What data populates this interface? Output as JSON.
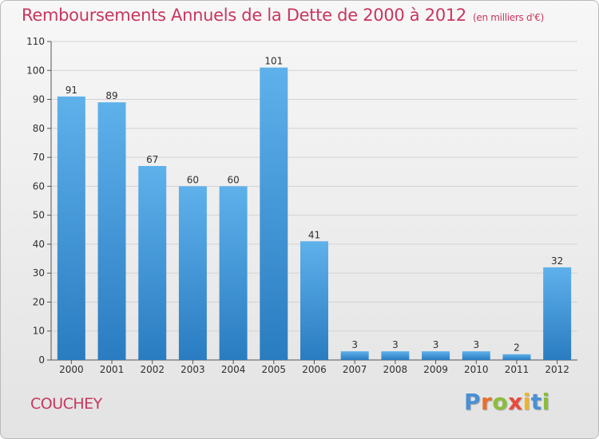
{
  "title": "Remboursements Annuels de la Dette de 2000 à 2012",
  "title_unit": "(en milliers d'€)",
  "commune": "COUCHEY",
  "brand": "Proxiti",
  "colors": {
    "title": "#c8365e",
    "bar_top": "#5eb1eb",
    "bar_bottom": "#2a7cc1",
    "brand_letters": [
      "#4a8fd4",
      "#e8702a",
      "#8bbd3c",
      "#e84a3c",
      "#f0b32a",
      "#4a8fd4",
      "#8bbd3c"
    ]
  },
  "chart_data": {
    "type": "bar",
    "categories": [
      "2000",
      "2001",
      "2002",
      "2003",
      "2004",
      "2005",
      "2006",
      "2007",
      "2008",
      "2009",
      "2010",
      "2011",
      "2012"
    ],
    "values": [
      91,
      89,
      67,
      60,
      60,
      101,
      41,
      3,
      3,
      3,
      3,
      2,
      32
    ],
    "ylim": [
      0,
      110
    ],
    "yticks": [
      0,
      10,
      20,
      30,
      40,
      50,
      60,
      70,
      80,
      90,
      100,
      110
    ],
    "grid": true,
    "data_labels": true
  }
}
